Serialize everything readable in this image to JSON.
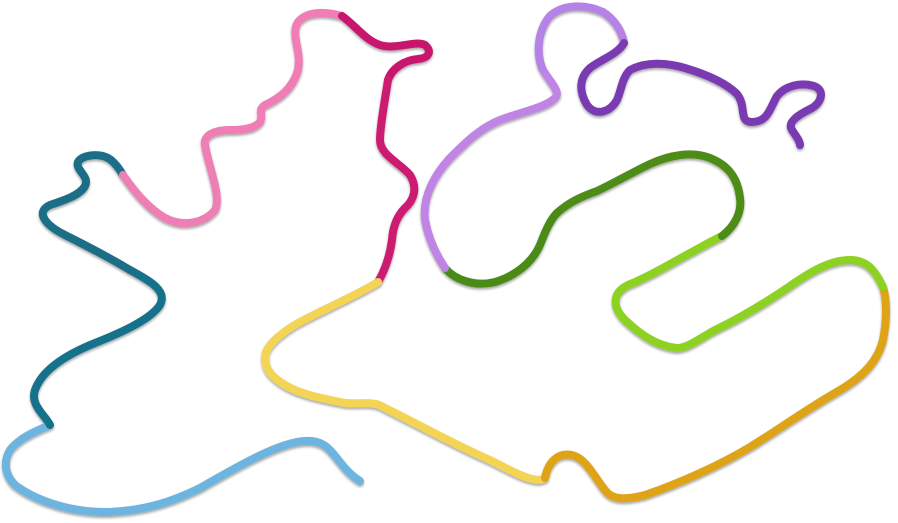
{
  "background": "#ffffff",
  "path_segments": [
    {
      "name": "segment-1",
      "color": "#6db5df"
    },
    {
      "name": "segment-2",
      "color": "#17718a"
    },
    {
      "name": "segment-3",
      "color": "#1a6e86"
    },
    {
      "name": "segment-4",
      "color": "#ee7fb4"
    },
    {
      "name": "segment-5",
      "color": "#f07db3"
    },
    {
      "name": "segment-6",
      "color": "#c8156e"
    },
    {
      "name": "segment-7",
      "color": "#cc1b71"
    },
    {
      "name": "segment-8",
      "color": "#f3d454"
    },
    {
      "name": "segment-9",
      "color": "#dea317"
    },
    {
      "name": "segment-10",
      "color": "#8dd124"
    },
    {
      "name": "segment-11",
      "color": "#4d8c18"
    },
    {
      "name": "segment-12",
      "color": "#4a8b16"
    },
    {
      "name": "segment-13",
      "color": "#bf84e4"
    },
    {
      "name": "segment-14",
      "color": "#b582e5"
    },
    {
      "name": "segment-15",
      "color": "#7a3ab2"
    }
  ]
}
